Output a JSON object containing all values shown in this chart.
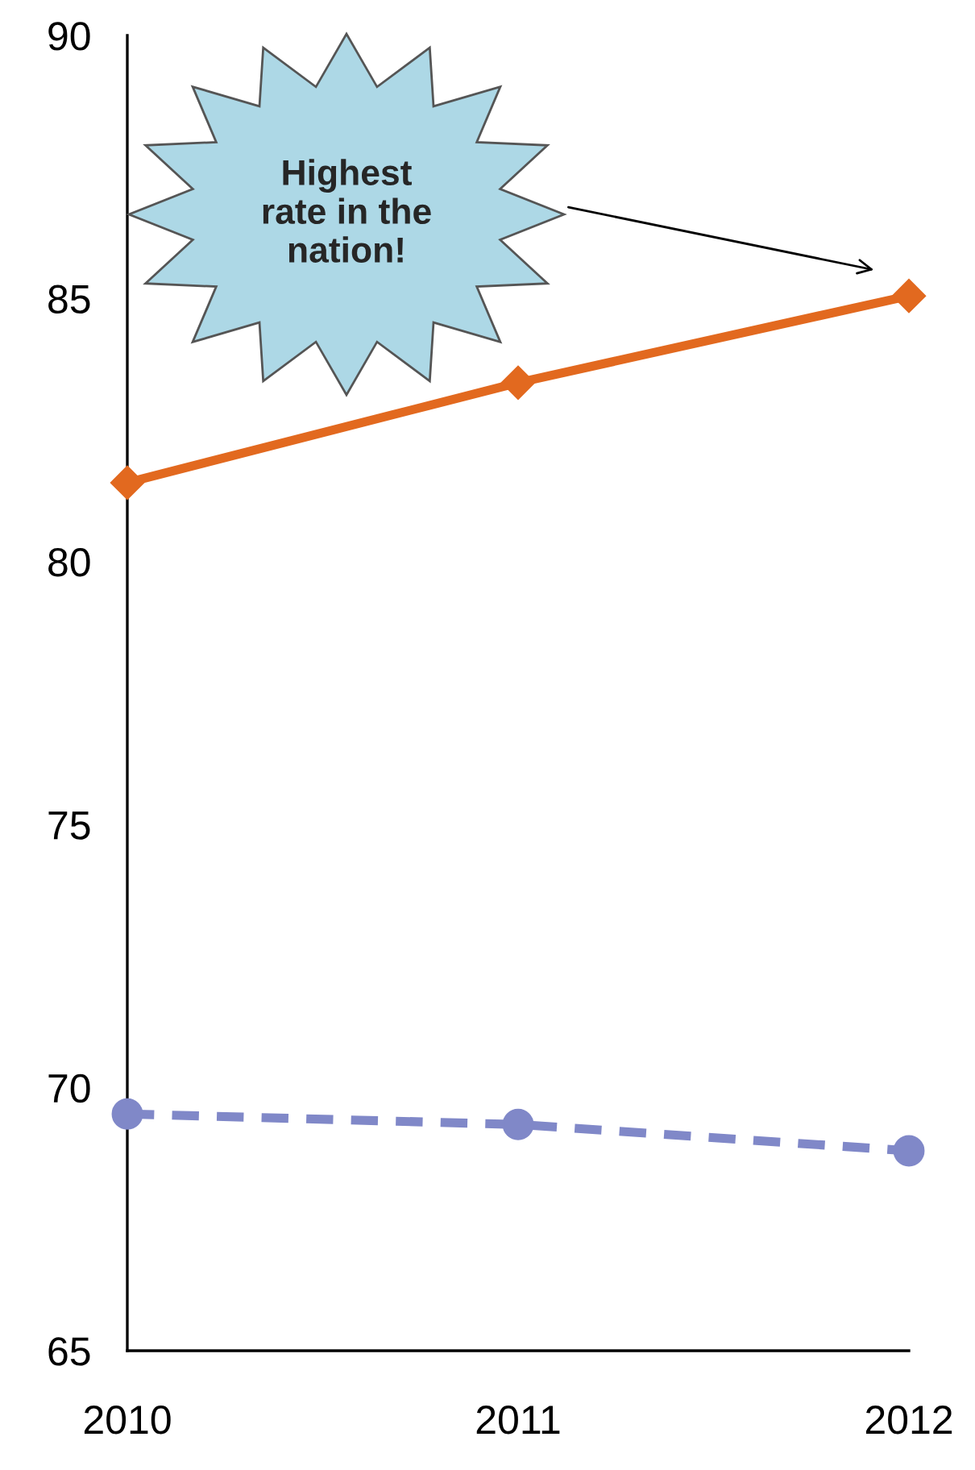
{
  "chart_data": {
    "type": "line",
    "x": [
      2010,
      2011,
      2012
    ],
    "series": [
      {
        "color": "#e2691f",
        "values": [
          81.5,
          83.4,
          85.05
        ],
        "marker": "diamond",
        "line_style": "solid"
      },
      {
        "color": "#8088c8",
        "values": [
          69.5,
          69.3,
          68.8
        ],
        "marker": "circle",
        "line_style": "dashed"
      }
    ],
    "xlim": [
      2010,
      2012
    ],
    "xticks": [
      2010,
      2011,
      2012
    ],
    "ylim": [
      65,
      90
    ],
    "yticks": [
      65,
      70,
      75,
      80,
      85,
      90
    ],
    "grid": false,
    "legend": false,
    "annotations": [
      "Highest\nrate in the\nnation!"
    ]
  }
}
